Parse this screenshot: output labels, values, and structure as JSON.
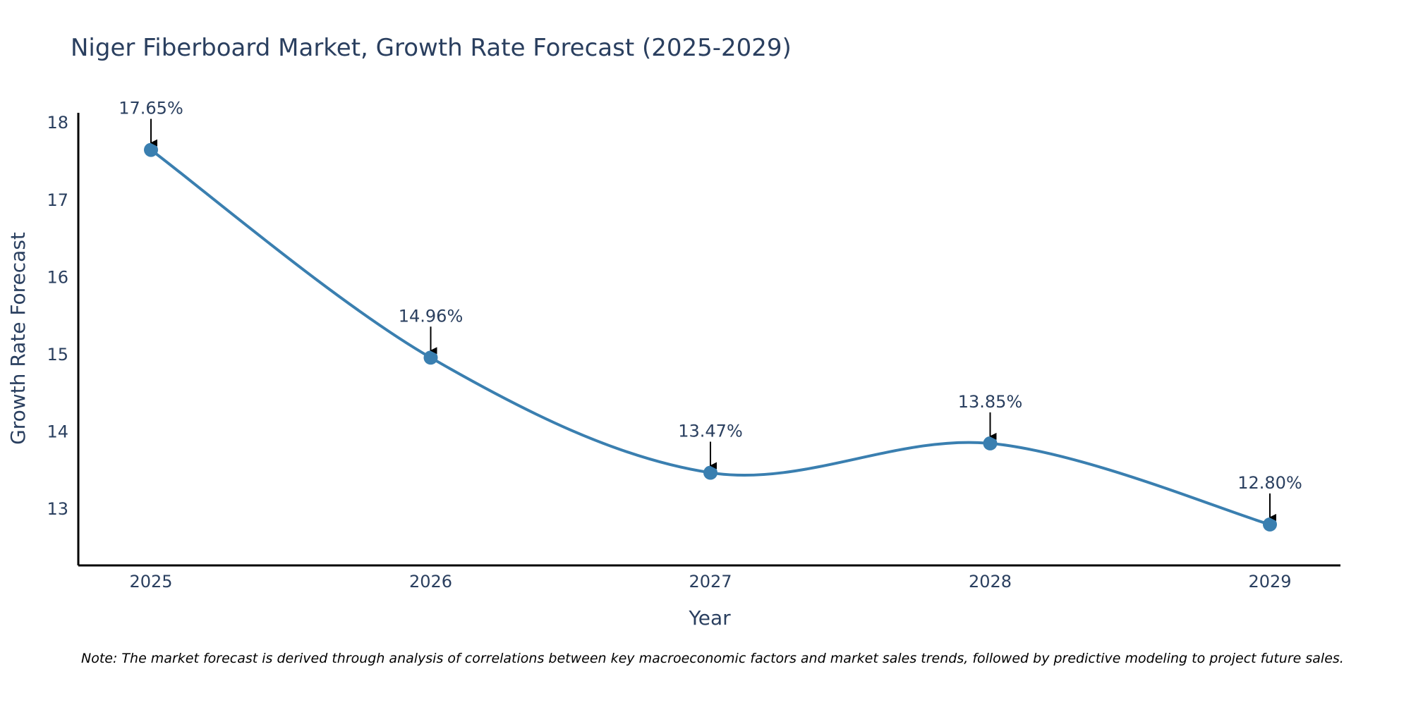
{
  "chart_data": {
    "type": "line",
    "title": "Niger Fiberboard Market, Growth Rate Forecast (2025-2029)",
    "xlabel": "Year",
    "ylabel": "Growth Rate Forecast",
    "categories": [
      "2025",
      "2026",
      "2027",
      "2028",
      "2029"
    ],
    "values": [
      17.65,
      14.96,
      13.47,
      13.85,
      12.8
    ],
    "annotations": [
      "17.65%",
      "14.96%",
      "13.47%",
      "13.85%",
      "12.80%"
    ],
    "yticks": [
      "13",
      "14",
      "15",
      "16",
      "17",
      "18"
    ],
    "ylim": [
      12.27,
      18.13
    ],
    "grid": false,
    "line_shape": "spline",
    "note": "Note: The market forecast is derived through analysis of correlations between key macroeconomic factors and market sales trends, followed by predictive modeling to project future sales."
  },
  "colors": {
    "series": "#3a7fb0",
    "text": "#2a3f5f",
    "axis": "#000000"
  }
}
